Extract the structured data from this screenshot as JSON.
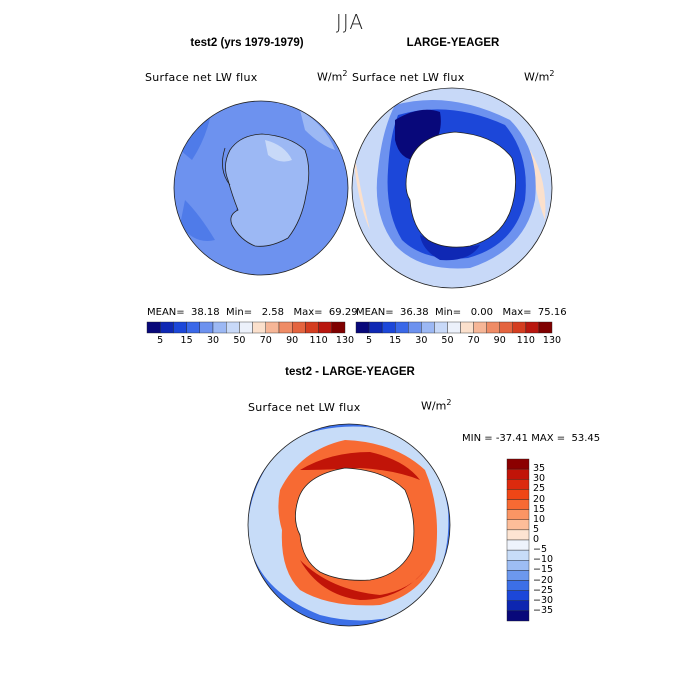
{
  "figure": {
    "season": "JJA",
    "variable_label": "Surface net LW flux",
    "unit_label": "W/m",
    "unit_power": "2"
  },
  "chart_data": [
    {
      "type": "heatmap",
      "title": "test2 (yrs 1979-1979)",
      "projection": "south-polar-stereographic",
      "stats": {
        "mean_label": "MEAN=",
        "mean": "38.18",
        "min_label": "Min=",
        "min": "2.58",
        "max_label": "Max=",
        "max": "69.29"
      },
      "colorbar": {
        "orientation": "horizontal",
        "levels": [
          5,
          15,
          30,
          50,
          70,
          90,
          110,
          130
        ],
        "colors": [
          "#08087a",
          "#0f28b4",
          "#1c47d9",
          "#3a68e8",
          "#6d92ef",
          "#9cb8f4",
          "#c8d9f8",
          "#ecf1fb",
          "#fbe0cc",
          "#f6b697",
          "#ef8c66",
          "#e4643f",
          "#d43d20",
          "#b9170f",
          "#7f0000"
        ]
      }
    },
    {
      "type": "heatmap",
      "title": "LARGE-YEAGER",
      "projection": "south-polar-stereographic",
      "stats": {
        "mean_label": "MEAN=",
        "mean": "36.38",
        "min_label": "Min=",
        "min": "0.00",
        "max_label": "Max=",
        "max": "75.16"
      },
      "colorbar": {
        "orientation": "horizontal",
        "levels": [
          5,
          15,
          30,
          50,
          70,
          90,
          110,
          130
        ],
        "colors": [
          "#08087a",
          "#0f28b4",
          "#1c47d9",
          "#3a68e8",
          "#6d92ef",
          "#9cb8f4",
          "#c8d9f8",
          "#ecf1fb",
          "#fbe0cc",
          "#f6b697",
          "#ef8c66",
          "#e4643f",
          "#d43d20",
          "#b9170f",
          "#7f0000"
        ]
      }
    },
    {
      "type": "heatmap",
      "title": "test2 - LARGE-YEAGER",
      "projection": "south-polar-stereographic",
      "stats": {
        "min_label": "MIN =",
        "min": "-37.41",
        "max_label": "MAX =",
        "max": "53.45"
      },
      "colorbar": {
        "orientation": "vertical",
        "levels": [
          35,
          30,
          25,
          20,
          15,
          10,
          5,
          0,
          -5,
          -10,
          -15,
          -20,
          -25,
          -30,
          -35
        ],
        "level_labels": [
          "35",
          "30",
          "25",
          "20",
          "15",
          "10",
          "5",
          "0",
          "−5",
          "−10",
          "−15",
          "−20",
          "−25",
          "−30",
          "−35"
        ],
        "colors": [
          "#8b0000",
          "#c11408",
          "#dc2a0e",
          "#ef4616",
          "#f76a33",
          "#fb9564",
          "#fdbd99",
          "#fde4d2",
          "#eef3fc",
          "#c7dcf8",
          "#9dbdf4",
          "#6c98ee",
          "#3c6fe7",
          "#1c47d9",
          "#0d26b0",
          "#08087a"
        ]
      }
    }
  ]
}
